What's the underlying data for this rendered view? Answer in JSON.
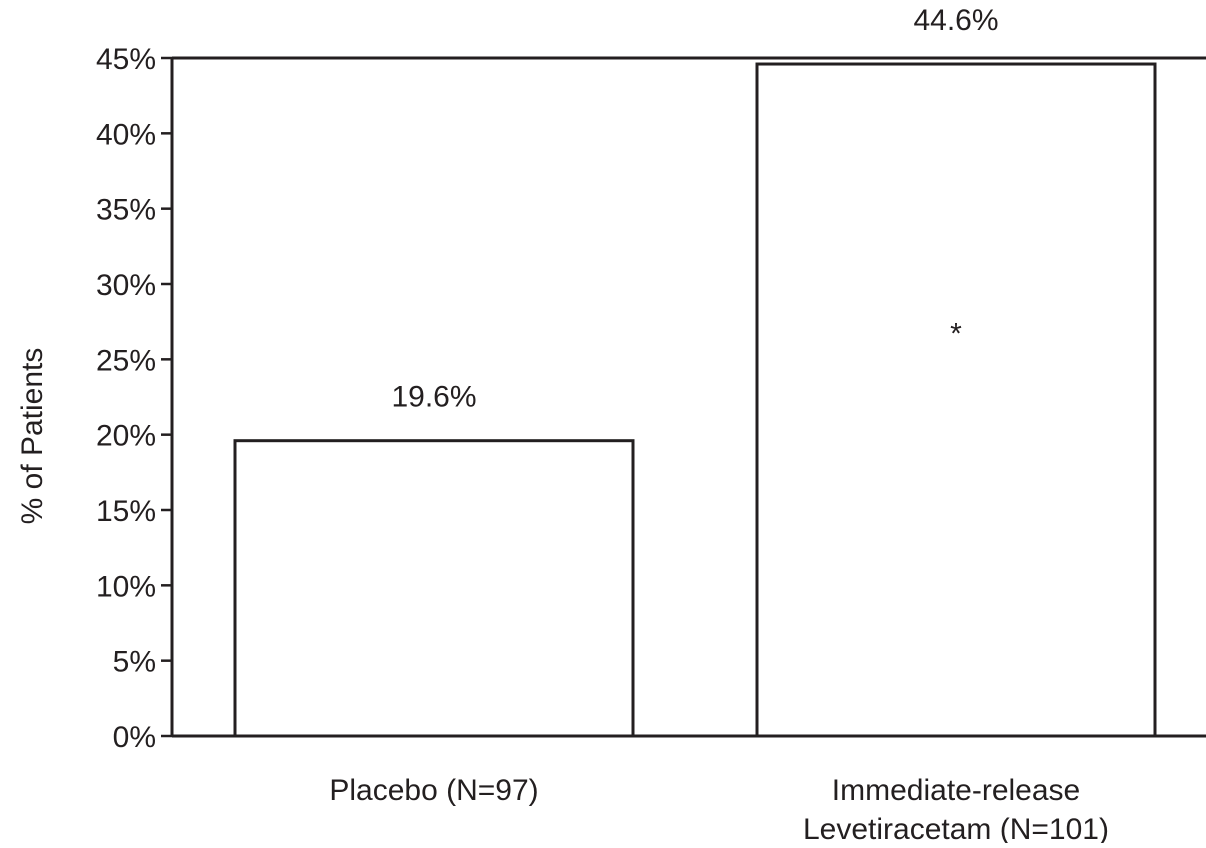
{
  "chart_data": {
    "type": "bar",
    "categories": [
      [
        "Placebo (N=97)"
      ],
      [
        "Immediate-release",
        "Levetiracetam (N=101)"
      ]
    ],
    "values": [
      19.6,
      44.6
    ],
    "data_labels": [
      "19.6%",
      "44.6%"
    ],
    "ylabel": "% of Patients",
    "xlabel": "",
    "ylim": [
      0,
      45
    ],
    "yticks": [
      0,
      5,
      10,
      15,
      20,
      25,
      30,
      35,
      40,
      45
    ],
    "ytick_labels": [
      "0%",
      "5%",
      "10%",
      "15%",
      "20%",
      "25%",
      "30%",
      "35%",
      "40%",
      "45%"
    ],
    "annotations": [
      {
        "text": "*",
        "category_index": 1,
        "y": 27.5
      }
    ],
    "grid": false,
    "legend": "none",
    "colors": {
      "bar_fill": "#ffffff",
      "bar_stroke": "#231f20",
      "axis": "#231f20",
      "text": "#231f20"
    }
  }
}
